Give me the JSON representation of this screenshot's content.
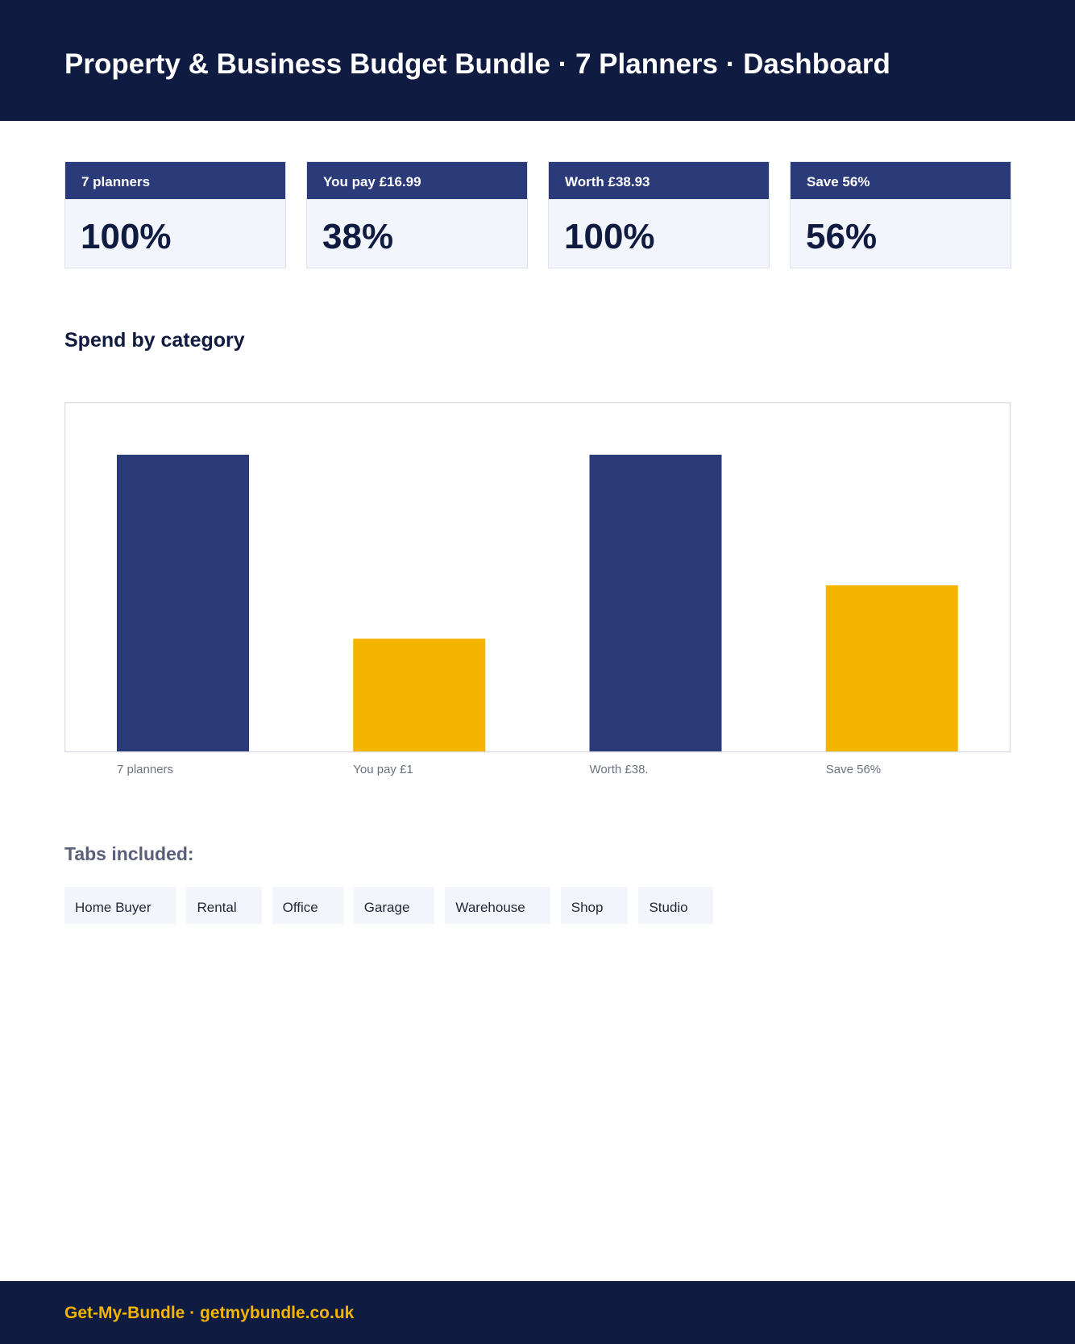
{
  "header": {
    "title": "Property & Business Budget Bundle · 7 Planners · Dashboard"
  },
  "kpis": [
    {
      "label": "7 planners",
      "value": "100%"
    },
    {
      "label": "You pay £16.99",
      "value": "38%"
    },
    {
      "label": "Worth £38.93",
      "value": "100%"
    },
    {
      "label": "Save 56%",
      "value": "56%"
    }
  ],
  "section_title": "Spend by category",
  "chart_data": {
    "type": "bar",
    "categories": [
      "7 planners",
      "You pay £1",
      "Worth £38.",
      "Save 56%"
    ],
    "values": [
      100,
      38,
      100,
      56
    ],
    "colors": [
      "#2b3a78",
      "#f4b400",
      "#2b3a78",
      "#f4b400"
    ],
    "ylim": [
      0,
      100
    ]
  },
  "tabs": {
    "title": "Tabs included:",
    "items": [
      "Home Buyer",
      "Rental",
      "Office",
      "Garage",
      "Warehouse",
      "Shop",
      "Studio"
    ]
  },
  "footer": {
    "text": "Get-My-Bundle · getmybundle.co.uk"
  }
}
